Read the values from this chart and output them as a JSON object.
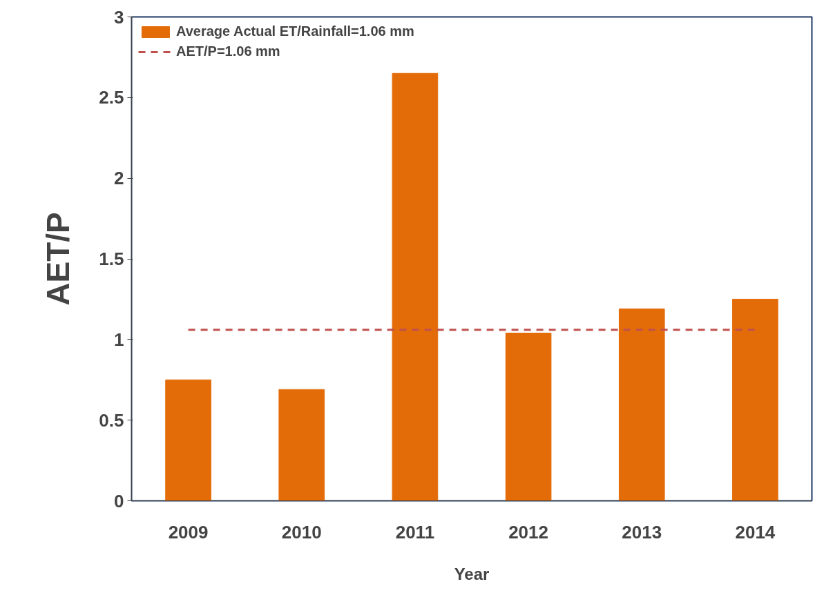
{
  "chart_data": {
    "type": "bar",
    "xlabel": "Year",
    "ylabel": "AET/P",
    "categories": [
      "2009",
      "2010",
      "2011",
      "2012",
      "2013",
      "2014"
    ],
    "series": [
      {
        "name": "Average Actual ET/Rainfall=1.06 mm",
        "color": "#e36c09",
        "values": [
          0.75,
          0.69,
          2.65,
          1.04,
          1.19,
          1.25
        ]
      }
    ],
    "ref_lines": [
      {
        "axis": "y",
        "value": 1.06,
        "label": "AET/P=1.06 mm",
        "color": "#c0504d",
        "line_style": "dashed"
      }
    ],
    "ylim": [
      0,
      3
    ],
    "yticks": [
      0,
      0.5,
      1,
      1.5,
      2,
      2.5,
      3
    ],
    "grid": false,
    "legend": "top left"
  }
}
